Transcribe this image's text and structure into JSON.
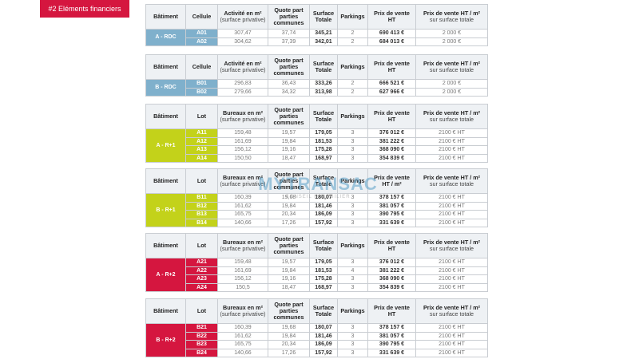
{
  "tag": "#2 Eléments financiers",
  "watermark": {
    "brand": "MYTRANSAC",
    "tagline": "CONSEIL IMMOBILIER"
  },
  "tables": [
    {
      "color": "#7fb0cc",
      "top": 0,
      "headers": [
        {
          "lines": [
            "Bâtiment"
          ]
        },
        {
          "lines": [
            "Cellule"
          ]
        },
        {
          "lines": [
            "Activité en m²"
          ],
          "note": "(surface privative)"
        },
        {
          "lines": [
            "Quote part",
            "parties",
            "communes"
          ]
        },
        {
          "lines": [
            "Surface",
            "Totale"
          ]
        },
        {
          "lines": [
            "Parkings"
          ]
        },
        {
          "lines": [
            "Prix de vente",
            "HT"
          ]
        },
        {
          "lines": [
            "Prix de vente HT / m²"
          ],
          "note": "sur surface totale"
        }
      ],
      "building": "A - RDC",
      "rows": [
        [
          "A01",
          "307,47",
          "37,74",
          "345,21",
          "2",
          "690 413 €",
          "2 000 €"
        ],
        [
          "A02",
          "304,62",
          "37,39",
          "342,01",
          "2",
          "684 013 €",
          "2 000 €"
        ]
      ]
    },
    {
      "color": "#7fb0cc",
      "headers": [
        {
          "lines": [
            "Bâtiment"
          ]
        },
        {
          "lines": [
            "Cellule"
          ]
        },
        {
          "lines": [
            "Activité en m²"
          ],
          "note": "(surface privative)"
        },
        {
          "lines": [
            "Quote part",
            "parties",
            "communes"
          ]
        },
        {
          "lines": [
            "Surface",
            "Totale"
          ]
        },
        {
          "lines": [
            "Parkings"
          ]
        },
        {
          "lines": [
            "Prix de vente",
            "HT"
          ]
        },
        {
          "lines": [
            "Prix de vente HT / m²"
          ],
          "note": "sur surface totale"
        }
      ],
      "building": "B - RDC",
      "rows": [
        [
          "B01",
          "296,83",
          "36,43",
          "333,26",
          "2",
          "666 521 €",
          "2 000 €"
        ],
        [
          "B02",
          "279,66",
          "34,32",
          "313,98",
          "2",
          "627 966 €",
          "2 000 €"
        ]
      ]
    },
    {
      "color": "#c3d21a",
      "headers": [
        {
          "lines": [
            "Bâtiment"
          ]
        },
        {
          "lines": [
            "Lot"
          ]
        },
        {
          "lines": [
            "Bureaux en m²"
          ],
          "note": "(surface privative)"
        },
        {
          "lines": [
            "Quote part",
            "parties",
            "communes"
          ]
        },
        {
          "lines": [
            "Surface",
            "Totale"
          ]
        },
        {
          "lines": [
            "Parkings"
          ]
        },
        {
          "lines": [
            "Prix de vente",
            "HT"
          ]
        },
        {
          "lines": [
            "Prix de vente HT / m²"
          ],
          "note": "sur surface totale"
        }
      ],
      "building": "A - R+1",
      "rows": [
        [
          "A11",
          "159,48",
          "19,57",
          "179,05",
          "3",
          "376 012 €",
          "2100 € HT"
        ],
        [
          "A12",
          "161,69",
          "19,84",
          "181,53",
          "3",
          "381 222 €",
          "2100 € HT"
        ],
        [
          "A13",
          "156,12",
          "19,16",
          "175,28",
          "3",
          "368 090 €",
          "2100 € HT"
        ],
        [
          "A14",
          "150,50",
          "18,47",
          "168,97",
          "3",
          "354 839 €",
          "2100 € HT"
        ]
      ]
    },
    {
      "color": "#c3d21a",
      "headers": [
        {
          "lines": [
            "Bâtiment"
          ]
        },
        {
          "lines": [
            "Lot"
          ]
        },
        {
          "lines": [
            "Bureaux en m²"
          ],
          "note": "(surface privative)"
        },
        {
          "lines": [
            "Quote part",
            "parties",
            "communes"
          ]
        },
        {
          "lines": [
            "Surface",
            "Totale"
          ]
        },
        {
          "lines": [
            "Parkings"
          ]
        },
        {
          "lines": [
            "Prix de vente",
            "HT / m²"
          ]
        },
        {
          "lines": [
            "Prix de vente HT / m²"
          ],
          "note": "sur surface totale"
        }
      ],
      "building": "B - R+1",
      "rows": [
        [
          "B11",
          "160,39",
          "19,68",
          "180,07",
          "3",
          "378 157 €",
          "2100 € HT"
        ],
        [
          "B12",
          "161,62",
          "19,84",
          "181,46",
          "3",
          "381 057 €",
          "2100 € HT"
        ],
        [
          "B13",
          "165,75",
          "20,34",
          "186,09",
          "3",
          "390 795 €",
          "2100 € HT"
        ],
        [
          "B14",
          "140,66",
          "17,26",
          "157,92",
          "3",
          "331 639 €",
          "2100 € HT"
        ]
      ]
    },
    {
      "color": "#d5163f",
      "headers": [
        {
          "lines": [
            "Bâtiment"
          ]
        },
        {
          "lines": [
            "Lot"
          ]
        },
        {
          "lines": [
            "Bureaux en m²"
          ],
          "note": "(surface privative)"
        },
        {
          "lines": [
            "Quote part",
            "parties",
            "communes"
          ]
        },
        {
          "lines": [
            "Surface",
            "Totale"
          ]
        },
        {
          "lines": [
            "Parkings"
          ]
        },
        {
          "lines": [
            "Prix de vente",
            "HT"
          ]
        },
        {
          "lines": [
            "Prix de vente HT / m²"
          ],
          "note": "sur surface totale"
        }
      ],
      "building": "A - R+2",
      "rows": [
        [
          "A21",
          "159,48",
          "19,57",
          "179,05",
          "3",
          "376 012 €",
          "2100 € HT"
        ],
        [
          "A22",
          "161,69",
          "19,84",
          "181,53",
          "4",
          "381 222 €",
          "2100 € HT"
        ],
        [
          "A23",
          "156,12",
          "19,16",
          "175,28",
          "3",
          "368 090 €",
          "2100 € HT"
        ],
        [
          "A24",
          "150,5",
          "18,47",
          "168,97",
          "3",
          "354 839 €",
          "2100 € HT"
        ]
      ]
    },
    {
      "color": "#d5163f",
      "headers": [
        {
          "lines": [
            "Bâtiment"
          ]
        },
        {
          "lines": [
            "Lot"
          ]
        },
        {
          "lines": [
            "Bureaux en m²"
          ],
          "note": "(surface privative)"
        },
        {
          "lines": [
            "Quote part",
            "parties",
            "communes"
          ]
        },
        {
          "lines": [
            "Surface",
            "Totale"
          ]
        },
        {
          "lines": [
            "Parkings"
          ]
        },
        {
          "lines": [
            "Prix de vente",
            "HT"
          ]
        },
        {
          "lines": [
            "Prix de vente HT / m²"
          ],
          "note": "sur surface totale"
        }
      ],
      "building": "B - R+2",
      "rows": [
        [
          "B21",
          "160,39",
          "19,68",
          "180,07",
          "3",
          "378 157 €",
          "2100 € HT"
        ],
        [
          "B22",
          "161,62",
          "19,84",
          "181,46",
          "3",
          "381 057 €",
          "2100 € HT"
        ],
        [
          "B23",
          "165,75",
          "20,34",
          "186,09",
          "3",
          "390 795 €",
          "2100 € HT"
        ],
        [
          "B24",
          "140,66",
          "17,26",
          "157,92",
          "3",
          "331 639 €",
          "2100 € HT"
        ]
      ]
    }
  ]
}
